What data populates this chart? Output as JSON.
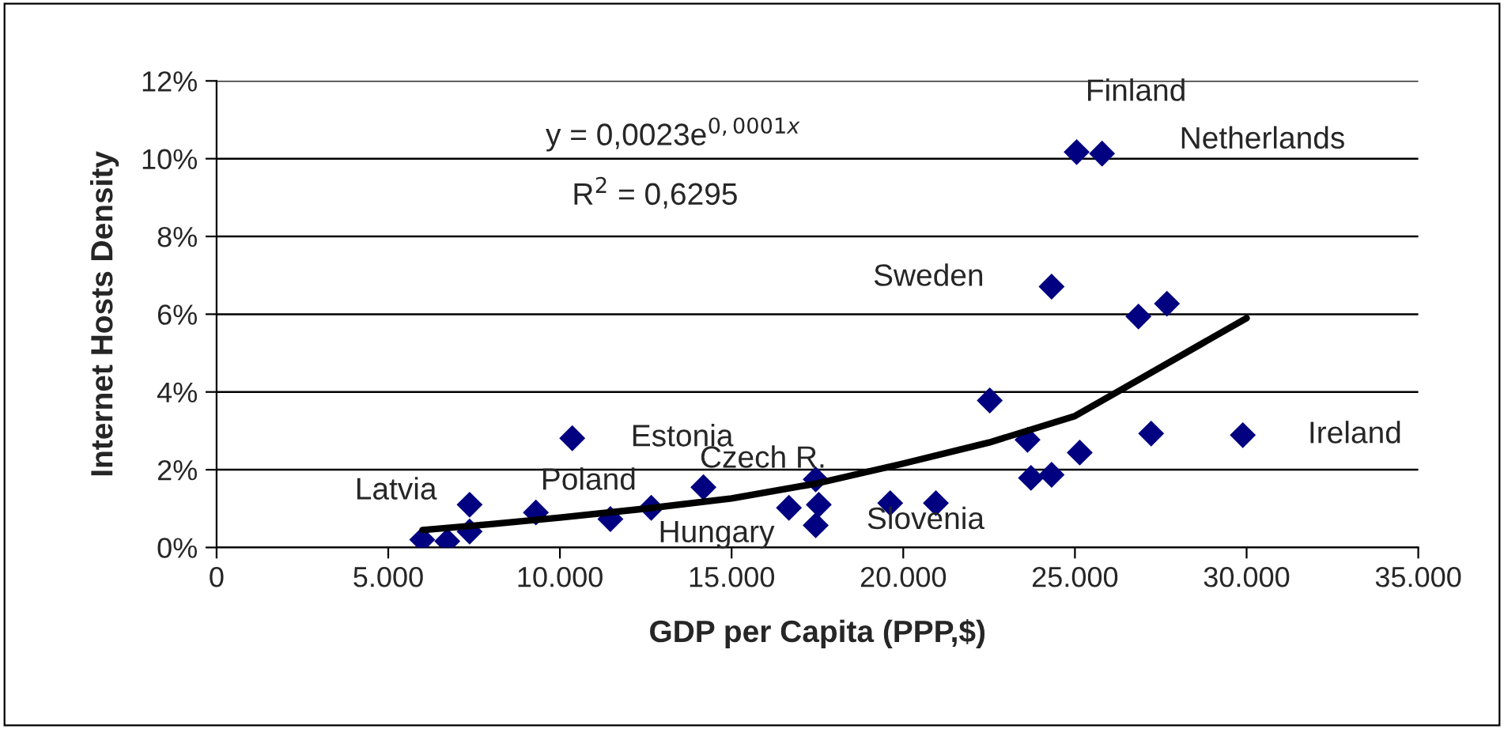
{
  "chart_data": {
    "type": "scatter",
    "xlabel": "GDP per Capita (PPP,$)",
    "ylabel": "Internet Hosts Density",
    "series": [
      {
        "color": "#000080",
        "marker": "diamond",
        "x": [
          5990,
          6720,
          7370,
          7370,
          9300,
          11470,
          12660,
          14180,
          10360,
          16670,
          17450,
          17540,
          17450,
          19620,
          20950,
          24320,
          26850,
          27680,
          22520,
          23620,
          27220,
          29890,
          25140,
          23720,
          24320,
          25050,
          25790
        ],
        "values": [
          0.2,
          0.16,
          1.1,
          0.41,
          0.9,
          0.73,
          1.02,
          1.55,
          2.81,
          1.02,
          1.75,
          1.1,
          0.57,
          1.14,
          1.14,
          6.71,
          5.94,
          6.27,
          3.78,
          2.77,
          2.93,
          2.89,
          2.44,
          1.79,
          1.87,
          10.17,
          10.13
        ]
      },
      {
        "type": "line",
        "color": "#000000",
        "marker": "none",
        "x": [
          6000,
          8000,
          10000,
          12500,
          15000,
          17500,
          20000,
          22500,
          25000,
          27500,
          30000
        ],
        "values": [
          0.45,
          0.6,
          0.77,
          1.0,
          1.26,
          1.65,
          2.16,
          2.7,
          3.38,
          4.64,
          5.9
        ]
      }
    ],
    "xlim": [
      0,
      35000
    ],
    "ylim": [
      0,
      12
    ],
    "xticks": [
      0,
      {
        "value": 5000,
        "label": "5.000"
      },
      {
        "value": 10000,
        "label": "10.000"
      },
      {
        "value": 15000,
        "label": "15.000"
      },
      {
        "value": 20000,
        "label": "20.000"
      },
      {
        "value": 25000,
        "label": "25.000"
      },
      {
        "value": 30000,
        "label": "30.000"
      },
      {
        "value": 35000,
        "label": "35.000"
      }
    ],
    "yticks": [
      {
        "value": 0,
        "label": "0%"
      },
      {
        "value": 2,
        "label": "2%"
      },
      {
        "value": 4,
        "label": "4%"
      },
      {
        "value": 6,
        "label": "6%"
      },
      {
        "value": 8,
        "label": "8%"
      },
      {
        "value": 10,
        "label": "10%"
      },
      {
        "value": 12,
        "label": "12%"
      }
    ],
    "grid": "y",
    "legend": false,
    "annotations": [
      "y = 0,0023e$^{0,0001x}$",
      "R$^{2}$ = 0,6295",
      {
        "text": "Finland",
        "x": 25050,
        "y": 10.17
      },
      {
        "text": "Netherlands",
        "x": 25790,
        "y": 10.13
      },
      {
        "text": "Sweden",
        "x": 24320,
        "y": 6.71
      },
      {
        "text": "Ireland",
        "x": 29890,
        "y": 2.89
      },
      {
        "text": "Estonia",
        "x": 10360,
        "y": 2.81
      },
      {
        "text": "Czech R.",
        "x": 17450,
        "y": 1.75
      },
      {
        "text": "Poland",
        "x": 9300,
        "y": 0.9
      },
      {
        "text": "Latvia",
        "x": 5990,
        "y": 0.2
      },
      {
        "text": "Hungary",
        "x": 16670,
        "y": 1.02
      },
      {
        "text": "Slovenia",
        "x": 17450,
        "y": 0.57
      }
    ]
  }
}
